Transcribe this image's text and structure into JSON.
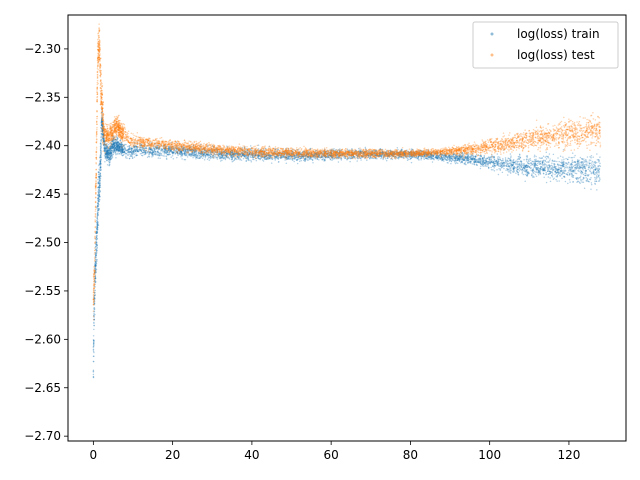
{
  "chart_data": {
    "type": "scatter",
    "title": "",
    "xlabel": "",
    "ylabel": "",
    "xlim": [
      -6.4,
      134.4
    ],
    "ylim": [
      -2.705,
      -2.265
    ],
    "x_ticks": [
      0,
      20,
      40,
      60,
      80,
      100,
      120
    ],
    "x_tick_labels": [
      "0",
      "20",
      "40",
      "60",
      "80",
      "100",
      "120"
    ],
    "y_ticks": [
      -2.3,
      -2.35,
      -2.4,
      -2.45,
      -2.5,
      -2.55,
      -2.6,
      -2.65,
      -2.7
    ],
    "y_tick_labels": [
      "−2.30",
      "−2.35",
      "−2.40",
      "−2.45",
      "−2.50",
      "−2.55",
      "−2.60",
      "−2.65",
      "−2.70"
    ],
    "grid": false,
    "legend_position": "top-right",
    "series": [
      {
        "name": "log(loss) train",
        "color": "#1f77b4",
        "marker": "point",
        "x_range": [
          0,
          128
        ],
        "points": [
          [
            0.0,
            -2.63
          ],
          [
            0.1,
            -2.6
          ],
          [
            0.2,
            -2.57
          ],
          [
            0.3,
            -2.55
          ],
          [
            0.5,
            -2.53
          ],
          [
            0.7,
            -2.51
          ],
          [
            0.9,
            -2.49
          ],
          [
            1.1,
            -2.47
          ],
          [
            1.3,
            -2.45
          ],
          [
            1.5,
            -2.44
          ],
          [
            1.7,
            -2.43
          ],
          [
            1.9,
            -2.41
          ],
          [
            2.1,
            -2.37
          ],
          [
            2.3,
            -2.38
          ],
          [
            2.5,
            -2.39
          ],
          [
            3,
            -2.405
          ],
          [
            4,
            -2.41
          ],
          [
            5,
            -2.4
          ],
          [
            6,
            -2.4
          ],
          [
            8,
            -2.405
          ],
          [
            10,
            -2.405
          ],
          [
            15,
            -2.405
          ],
          [
            20,
            -2.405
          ],
          [
            25,
            -2.407
          ],
          [
            30,
            -2.408
          ],
          [
            35,
            -2.409
          ],
          [
            40,
            -2.409
          ],
          [
            45,
            -2.41
          ],
          [
            50,
            -2.41
          ],
          [
            55,
            -2.41
          ],
          [
            60,
            -2.409
          ],
          [
            65,
            -2.409
          ],
          [
            70,
            -2.409
          ],
          [
            75,
            -2.409
          ],
          [
            80,
            -2.409
          ],
          [
            85,
            -2.41
          ],
          [
            90,
            -2.412
          ],
          [
            95,
            -2.414
          ],
          [
            100,
            -2.417
          ],
          [
            105,
            -2.42
          ],
          [
            110,
            -2.422
          ],
          [
            115,
            -2.423
          ],
          [
            120,
            -2.424
          ],
          [
            125,
            -2.425
          ],
          [
            128,
            -2.425
          ]
        ]
      },
      {
        "name": "log(loss) test",
        "color": "#ff7f0e",
        "marker": "point",
        "x_range": [
          0,
          128
        ],
        "points": [
          [
            0.0,
            -2.56
          ],
          [
            0.3,
            -2.53
          ],
          [
            0.6,
            -2.45
          ],
          [
            0.9,
            -2.37
          ],
          [
            1.1,
            -2.31
          ],
          [
            1.3,
            -2.3
          ],
          [
            1.5,
            -2.29
          ],
          [
            1.7,
            -2.31
          ],
          [
            1.9,
            -2.34
          ],
          [
            2.2,
            -2.36
          ],
          [
            2.5,
            -2.38
          ],
          [
            3,
            -2.39
          ],
          [
            4,
            -2.39
          ],
          [
            5,
            -2.385
          ],
          [
            6,
            -2.38
          ],
          [
            8,
            -2.39
          ],
          [
            10,
            -2.395
          ],
          [
            15,
            -2.398
          ],
          [
            20,
            -2.4
          ],
          [
            25,
            -2.402
          ],
          [
            30,
            -2.404
          ],
          [
            35,
            -2.405
          ],
          [
            40,
            -2.406
          ],
          [
            45,
            -2.407
          ],
          [
            50,
            -2.407
          ],
          [
            55,
            -2.408
          ],
          [
            60,
            -2.408
          ],
          [
            65,
            -2.408
          ],
          [
            70,
            -2.408
          ],
          [
            75,
            -2.408
          ],
          [
            80,
            -2.408
          ],
          [
            85,
            -2.407
          ],
          [
            90,
            -2.406
          ],
          [
            95,
            -2.404
          ],
          [
            100,
            -2.401
          ],
          [
            105,
            -2.398
          ],
          [
            110,
            -2.394
          ],
          [
            115,
            -2.39
          ],
          [
            120,
            -2.388
          ],
          [
            125,
            -2.386
          ],
          [
            128,
            -2.385
          ]
        ]
      }
    ]
  }
}
